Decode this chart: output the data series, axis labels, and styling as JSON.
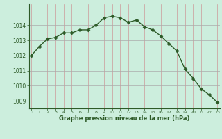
{
  "x": [
    0,
    1,
    2,
    3,
    4,
    5,
    6,
    7,
    8,
    9,
    10,
    11,
    12,
    13,
    14,
    15,
    16,
    17,
    18,
    19,
    20,
    21,
    22,
    23
  ],
  "y": [
    1012.0,
    1012.6,
    1013.1,
    1013.2,
    1013.5,
    1013.5,
    1013.7,
    1013.7,
    1014.0,
    1014.5,
    1014.6,
    1014.5,
    1014.2,
    1014.35,
    1013.9,
    1013.7,
    1013.3,
    1012.8,
    1012.3,
    1011.1,
    1010.5,
    1009.8,
    1009.4,
    1008.9
  ],
  "line_color": "#2d5a27",
  "marker": "D",
  "marker_size": 2.5,
  "bg_color": "#cceedd",
  "grid_color": "#aaaaaa",
  "text_color": "#2d5a27",
  "xlabel": "Graphe pression niveau de la mer (hPa)",
  "ylim": [
    1008.5,
    1015.4
  ],
  "yticks": [
    1009,
    1010,
    1011,
    1012,
    1013,
    1014
  ],
  "xlim": [
    -0.3,
    23.3
  ],
  "xtick_labels": [
    "0",
    "1",
    "2",
    "3",
    "4",
    "5",
    "6",
    "7",
    "8",
    "9",
    "10",
    "11",
    "12",
    "13",
    "14",
    "15",
    "16",
    "17",
    "18",
    "19",
    "20",
    "21",
    "22",
    "23"
  ]
}
